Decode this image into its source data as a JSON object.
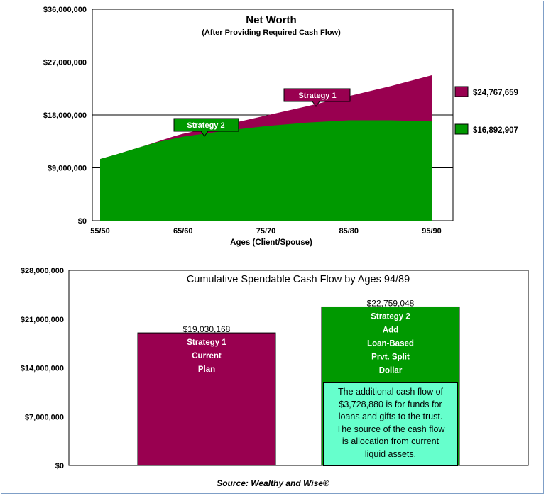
{
  "chart_data": [
    {
      "type": "area",
      "title": "Net Worth",
      "subtitle": "(After Providing Required Cash Flow)",
      "xlabel": "Ages (Client/Spouse)",
      "x_ticks": [
        "55/50",
        "65/60",
        "75/70",
        "85/80",
        "95/90"
      ],
      "y_ticks": [
        "$0",
        "$9,000,000",
        "$18,000,000",
        "$27,000,000",
        "$36,000,000"
      ],
      "ylim": [
        0,
        36000000
      ],
      "grid": true,
      "x": [
        55,
        57,
        60,
        62,
        64,
        65,
        70,
        75,
        80,
        85,
        90,
        95
      ],
      "series": [
        {
          "name": "Strategy 1",
          "color": "#990050",
          "values": [
            10500000,
            11300000,
            12600000,
            13500000,
            14400000,
            14800000,
            16300000,
            17900000,
            19500000,
            21200000,
            22900000,
            24767659
          ]
        },
        {
          "name": "Strategy 2",
          "color": "#009900",
          "values": [
            10500000,
            11300000,
            12600000,
            13400000,
            14000000,
            14300000,
            15300000,
            16100000,
            16700000,
            17100000,
            17100000,
            16892907
          ]
        }
      ],
      "end_labels": [
        "$24,767,659",
        "$16,892,907"
      ],
      "callouts": [
        "Strategy 1",
        "Strategy 2"
      ]
    },
    {
      "type": "bar",
      "title": "Cumulative Spendable Cash Flow by Ages 94/89",
      "ylim": [
        0,
        28000000
      ],
      "y_ticks": [
        "$0",
        "$7,000,000",
        "$14,000,000",
        "$21,000,000",
        "$28,000,000"
      ],
      "grid": false,
      "bars": [
        {
          "value": 19030168,
          "value_label": "$19,030,168",
          "color": "#990050",
          "lines": [
            "Strategy 1",
            "Current",
            "Plan"
          ]
        },
        {
          "value": 22759048,
          "value_label": "$22,759,048",
          "color": "#009900",
          "lines": [
            "Strategy 2",
            "Add",
            "Loan-Based",
            "Prvt. Split",
            "Dollar"
          ]
        }
      ],
      "note_lines": [
        "The additional cash flow of",
        "$3,728,880 is for funds for",
        "loans and gifts to the trust.",
        "The source of the cash flow",
        "is allocation from current",
        "liquid assets."
      ]
    }
  ],
  "source": "Source: Wealthy and Wise®"
}
